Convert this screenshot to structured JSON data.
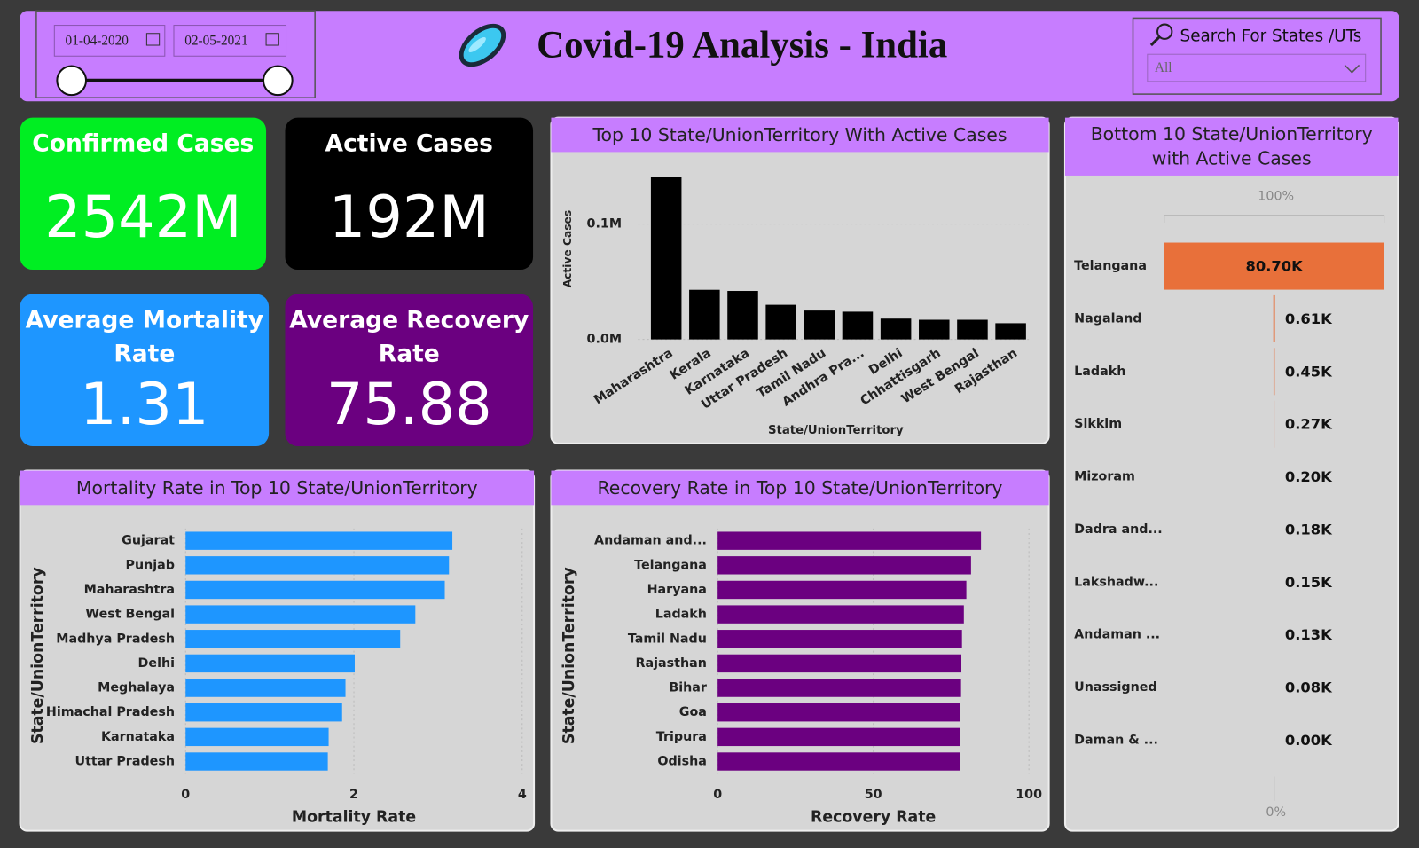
{
  "header": {
    "title": "Covid-19 Analysis - India",
    "start_date": "01-04-2020",
    "end_date": "02-05-2021",
    "search_label": "Search For States /UTs",
    "search_value": "All"
  },
  "kpis": [
    {
      "label_lines": [
        "Confirmed Cases"
      ],
      "value": "2542M",
      "color": "#00ee22"
    },
    {
      "label_lines": [
        "Active Cases"
      ],
      "value": "192M",
      "color": "#000000"
    },
    {
      "label_lines": [
        "Average Mortality",
        "Rate"
      ],
      "value": "1.31",
      "color": "#1e96ff"
    },
    {
      "label_lines": [
        "Average Recovery",
        "Rate"
      ],
      "value": "75.88",
      "color": "#6b0080"
    }
  ],
  "chart_data": [
    {
      "type": "bar",
      "title": "Top 10 State/UnionTerritory With Active Cases",
      "x_label": "State/UnionTerritory",
      "y_label": "Active Cases",
      "categories": [
        "Maharashtra",
        "Kerala",
        "Karnataka",
        "Uttar Pradesh",
        "Tamil Nadu",
        "Andhra Pra...",
        "Delhi",
        "Chhattisgarh",
        "West Bengal",
        "Rajasthan"
      ],
      "values": [
        141000,
        43000,
        42000,
        30000,
        25000,
        24000,
        18000,
        17000,
        17000,
        14000
      ],
      "color": "#000000",
      "ylim": [
        0,
        157000
      ],
      "yticks": [
        {
          "value": 0,
          "label": "0.0M"
        },
        {
          "value": 100000,
          "label": "0.1M"
        }
      ],
      "grid": true
    },
    {
      "type": "funnel",
      "title_lines": [
        "Bottom 10 State/UnionTerritory",
        "with Active Cases"
      ],
      "categories": [
        "Telangana",
        "Nagaland",
        "Ladakh",
        "Sikkim",
        "Mizoram",
        "Dadra and...",
        "Lakshadw...",
        "Andaman ...",
        "Unassigned",
        "Daman & ..."
      ],
      "values": [
        80700,
        610,
        450,
        270,
        200,
        180,
        150,
        130,
        80,
        0
      ],
      "value_labels": [
        "80.70K",
        "0.61K",
        "0.45K",
        "0.27K",
        "0.20K",
        "0.18K",
        "0.15K",
        "0.13K",
        "0.08K",
        "0.00K"
      ],
      "color": "#e8703a",
      "top_label": "100%",
      "bottom_label": "0%"
    },
    {
      "type": "hbar",
      "title": "Mortality Rate in Top 10 State/UnionTerritory",
      "x_label": "Mortality Rate",
      "y_label": "State/UnionTerritory",
      "categories": [
        "Gujarat",
        "Punjab",
        "Maharashtra",
        "West Bengal",
        "Madhya Pradesh",
        "Delhi",
        "Meghalaya",
        "Himachal Pradesh",
        "Karnataka",
        "Uttar Pradesh"
      ],
      "values": [
        3.17,
        3.13,
        3.08,
        2.73,
        2.55,
        2.01,
        1.9,
        1.86,
        1.7,
        1.69
      ],
      "color": "#1e96ff",
      "xlim": [
        0,
        4
      ],
      "xticks": [
        0,
        2,
        4
      ],
      "grid": true
    },
    {
      "type": "hbar",
      "title": "Recovery Rate in Top 10 State/UnionTerritory",
      "x_label": "Recovery Rate",
      "y_label": "State/UnionTerritory",
      "categories": [
        "Andaman and...",
        "Telangana",
        "Haryana",
        "Ladakh",
        "Tamil Nadu",
        "Rajasthan",
        "Bihar",
        "Goa",
        "Tripura",
        "Odisha"
      ],
      "values": [
        84.6,
        81.4,
        79.9,
        79.1,
        78.5,
        78.3,
        78.2,
        78.0,
        77.9,
        77.8
      ],
      "color": "#6b0080",
      "xlim": [
        0,
        100
      ],
      "xticks": [
        0,
        50,
        100
      ],
      "grid": true
    }
  ]
}
